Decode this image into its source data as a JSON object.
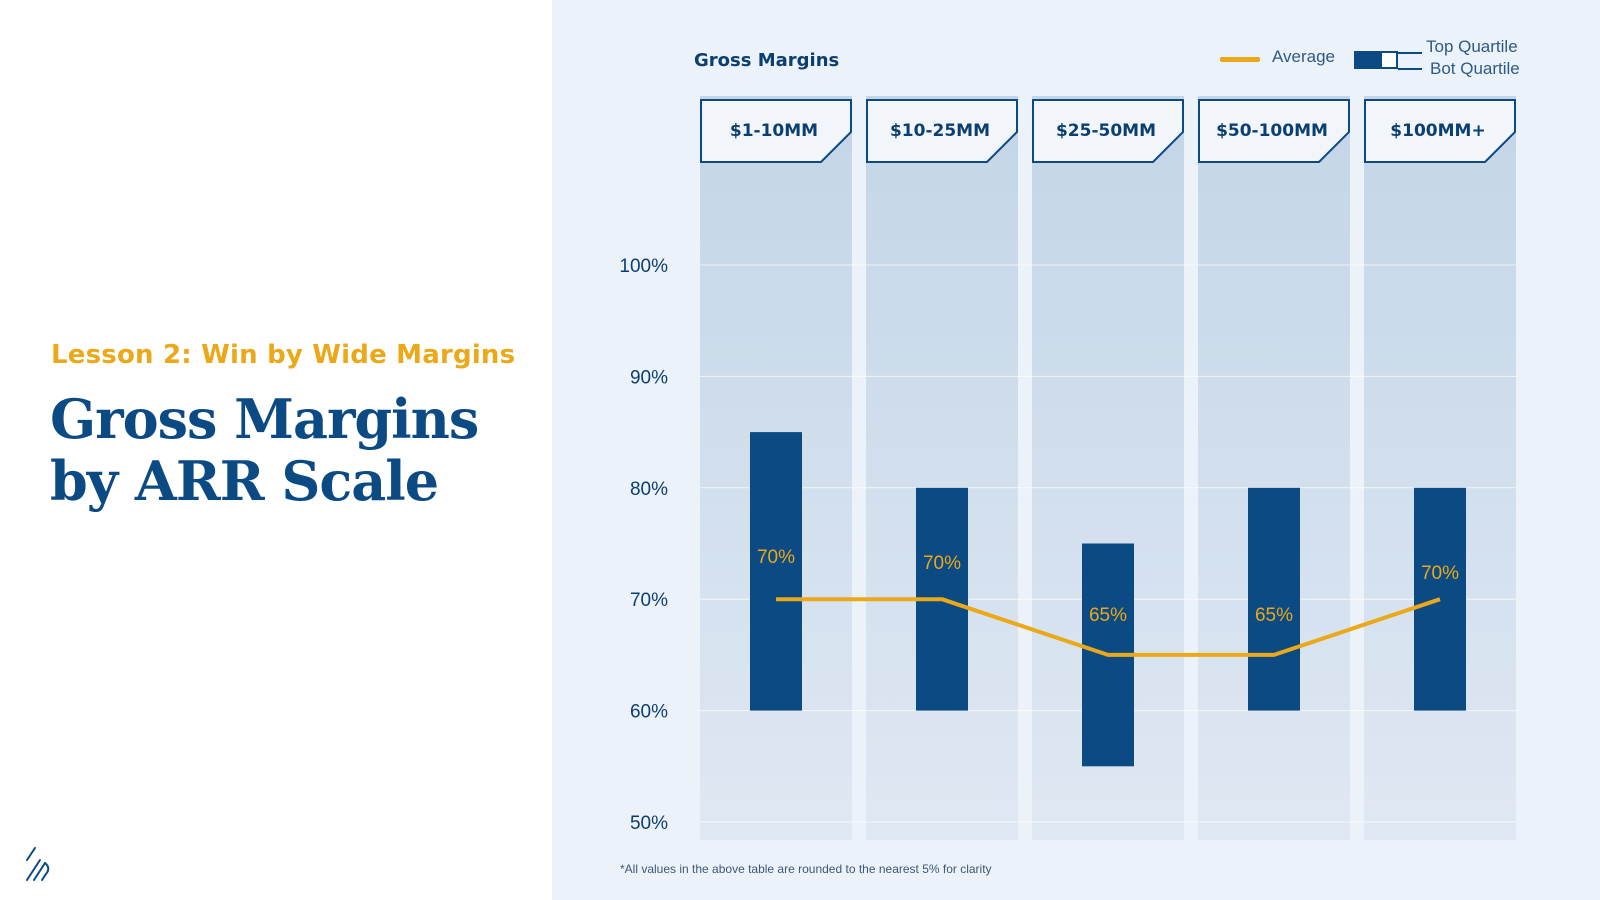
{
  "slide": {
    "lesson": "Lesson 2: Win by Wide Margins",
    "headline_line1": "Gross Margins",
    "headline_line2": "by ARR Scale"
  },
  "logo": {
    "icon": "brand-logo-icon"
  },
  "legend": {
    "average": "Average",
    "top_quartile": "Top Quartile",
    "bot_quartile": "Bot Quartile"
  },
  "footnote": "*All values in the above table are rounded to the nearest 5% for clarity",
  "colors": {
    "title": "#0c4a84",
    "accent": "#eba818",
    "bar": "#0c4a84",
    "panel": "#ecf2f9"
  },
  "chart_data": {
    "type": "bar",
    "title": "Gross Margins",
    "xlabel": "",
    "ylabel": "",
    "categories": [
      "$1-10MM",
      "$10-25MM",
      "$25-50MM",
      "$50-100MM",
      "$100MM+"
    ],
    "series": [
      {
        "name": "Top Quartile",
        "values": [
          85,
          80,
          75,
          80,
          80
        ]
      },
      {
        "name": "Bot Quartile",
        "values": [
          60,
          60,
          55,
          60,
          60
        ]
      },
      {
        "name": "Average",
        "values": [
          70,
          70,
          65,
          65,
          70
        ]
      }
    ],
    "average_labels": [
      "70%",
      "70%",
      "65%",
      "65%",
      "70%"
    ],
    "yticks": [
      "50%",
      "60%",
      "70%",
      "80%",
      "90%",
      "100%"
    ],
    "ytick_values": [
      50,
      60,
      70,
      80,
      90,
      100
    ],
    "ylim": [
      50,
      100
    ],
    "grid": true,
    "legend_position": "top-right"
  }
}
